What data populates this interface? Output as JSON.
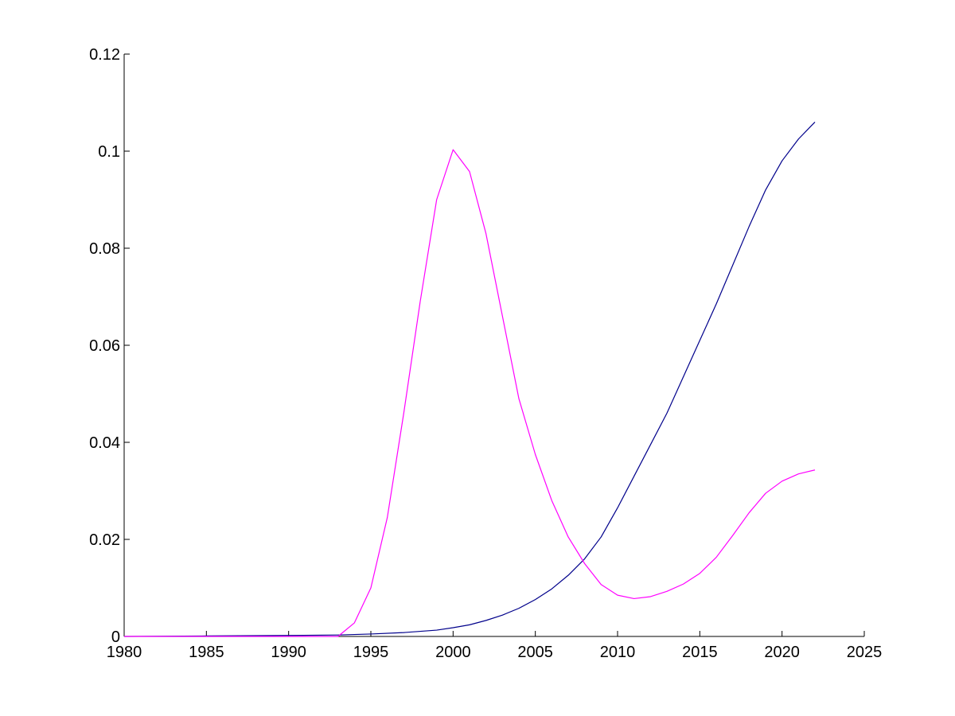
{
  "chart_data": {
    "type": "line",
    "title": "",
    "xlabel": "",
    "ylabel": "",
    "xlim": [
      1980,
      2025
    ],
    "ylim": [
      0,
      0.12
    ],
    "xticks": [
      1980,
      1985,
      1990,
      1995,
      2000,
      2005,
      2010,
      2015,
      2020,
      2025
    ],
    "xtick_labels": [
      "1980",
      "1985",
      "1990",
      "1995",
      "2000",
      "2005",
      "2010",
      "2015",
      "2020",
      "2025"
    ],
    "yticks": [
      0,
      0.02,
      0.04,
      0.06,
      0.08,
      0.1,
      0.12
    ],
    "ytick_labels": [
      "0",
      "0.02",
      "0.04",
      "0.06",
      "0.08",
      "0.1",
      "0.12"
    ],
    "grid": false,
    "legend": "none",
    "series": [
      {
        "color": "#00008b",
        "x": [
          1980,
          1985,
          1990,
          1993,
          1995,
          1997,
          1999,
          2000,
          2001,
          2002,
          2003,
          2004,
          2005,
          2006,
          2007,
          2008,
          2009,
          2010,
          2011,
          2012,
          2013,
          2014,
          2015,
          2016,
          2017,
          2018,
          2019,
          2020,
          2021,
          2022
        ],
        "y": [
          0,
          0.0001,
          0.0002,
          0.0003,
          0.0005,
          0.0008,
          0.0013,
          0.0018,
          0.0024,
          0.0033,
          0.0044,
          0.0058,
          0.0076,
          0.0098,
          0.0126,
          0.016,
          0.0205,
          0.0265,
          0.033,
          0.0395,
          0.046,
          0.0535,
          0.061,
          0.0685,
          0.0765,
          0.0845,
          0.092,
          0.098,
          0.1025,
          0.106
        ]
      },
      {
        "color": "#ff00ff",
        "x": [
          1980,
          1993,
          1994,
          1995,
          1996,
          1997,
          1998,
          1999,
          2000,
          2001,
          2002,
          2003,
          2004,
          2005,
          2006,
          2007,
          2008,
          2009,
          2010,
          2011,
          2012,
          2013,
          2014,
          2015,
          2016,
          2017,
          2018,
          2019,
          2020,
          2021,
          2022
        ],
        "y": [
          0,
          0,
          0.0028,
          0.01,
          0.0245,
          0.046,
          0.069,
          0.09,
          0.1003,
          0.0958,
          0.083,
          0.066,
          0.049,
          0.0375,
          0.028,
          0.0205,
          0.015,
          0.0107,
          0.0085,
          0.0078,
          0.0082,
          0.0093,
          0.0108,
          0.013,
          0.0163,
          0.0208,
          0.0255,
          0.0295,
          0.032,
          0.0335,
          0.0343
        ]
      }
    ]
  }
}
